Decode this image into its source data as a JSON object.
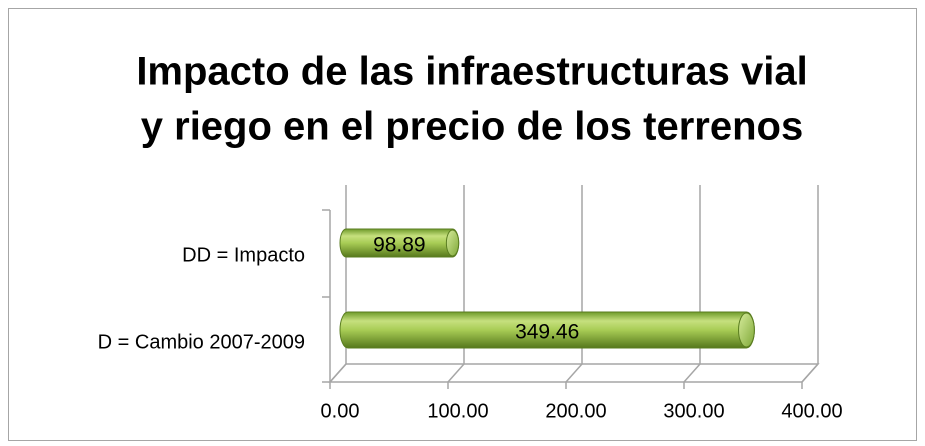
{
  "chart_data": {
    "type": "bar3d_horizontal",
    "title": [
      "Impacto de las infraestructuras vial",
      "y riego en el precio de los terrenos"
    ],
    "categories": [
      "DD = Impacto",
      "D = Cambio 2007-2009"
    ],
    "values": [
      98.89,
      349.46
    ],
    "color": "#8db83a",
    "xlim": [
      0,
      400
    ],
    "xticks": [
      {
        "value": 0,
        "label": "0.00"
      },
      {
        "value": 100,
        "label": "100.00"
      },
      {
        "value": 200,
        "label": "200.00"
      },
      {
        "value": 300,
        "label": "300.00"
      },
      {
        "value": 400,
        "label": "400.00"
      }
    ],
    "grid": true
  }
}
